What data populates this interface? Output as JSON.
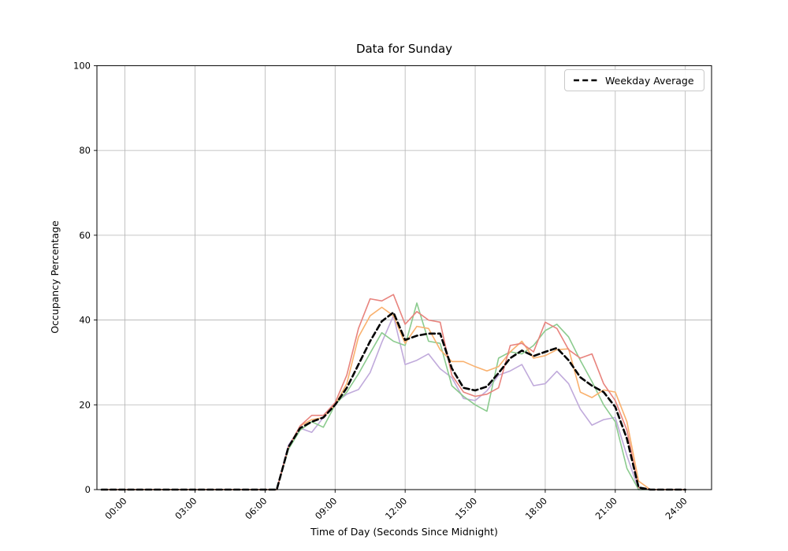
{
  "window": {
    "type": "chart-figure",
    "background": "#ffffff"
  },
  "chart_data": {
    "type": "line",
    "title": "Data for Sunday",
    "xlabel": "Time of Day (Seconds Since Midnight)",
    "ylabel": "Occupancy Percentage",
    "grid": true,
    "grid_color": "#b3b3b3",
    "ylim": [
      0,
      100
    ],
    "y_ticks": [
      0,
      20,
      40,
      60,
      80,
      100
    ],
    "x_tick_hours": [
      0,
      3,
      6,
      9,
      12,
      15,
      18,
      21,
      24
    ],
    "x_tick_labels": [
      "00:00",
      "03:00",
      "06:00",
      "09:00",
      "12:00",
      "15:00",
      "18:00",
      "21:00",
      "24:00"
    ],
    "legend": {
      "position": "upper right",
      "entries": [
        {
          "label": "Weekday Average",
          "color": "#000000",
          "style": "dashed"
        }
      ]
    },
    "x_hours": [
      -1,
      0,
      0.5,
      1,
      1.5,
      2,
      2.5,
      3,
      3.5,
      4,
      4.5,
      5,
      5.5,
      6,
      6.5,
      7,
      7.5,
      8,
      8.5,
      9,
      9.5,
      10,
      10.5,
      11,
      11.5,
      12,
      12.5,
      13,
      13.5,
      14,
      14.5,
      15,
      15.5,
      16,
      16.5,
      17,
      17.5,
      18,
      18.5,
      19,
      19.5,
      20,
      20.5,
      21,
      21.5,
      22,
      22.5,
      23,
      23.5,
      24
    ],
    "series": [
      {
        "name": "series-1",
        "color": "#c0aadb",
        "dashed": false,
        "width": 1.6,
        "values": [
          0,
          0,
          0,
          0,
          0,
          0,
          0,
          0,
          0,
          0,
          0,
          0,
          0,
          0,
          0,
          10.5,
          14.5,
          13.5,
          17,
          20.5,
          22.5,
          23.6,
          27.6,
          34.7,
          41,
          29.5,
          30.5,
          32,
          28.5,
          26.4,
          21.5,
          21,
          23.3,
          27,
          28,
          29.5,
          24.5,
          25,
          27.9,
          25,
          19,
          15.2,
          16.5,
          17,
          8,
          0,
          0,
          0,
          0,
          0
        ]
      },
      {
        "name": "series-2",
        "color": "#8bcb8e",
        "dashed": false,
        "width": 1.6,
        "values": [
          0,
          0,
          0,
          0,
          0,
          0,
          0,
          0,
          0,
          0,
          0,
          0,
          0,
          0,
          0,
          9.5,
          14,
          16,
          14.7,
          20,
          23,
          27.3,
          32.2,
          37,
          35,
          34,
          44,
          35,
          34.5,
          24.5,
          22,
          20,
          18.5,
          31,
          32.5,
          32,
          34,
          37.5,
          39,
          36,
          30.5,
          25.5,
          20,
          16,
          5,
          0,
          0,
          0,
          0,
          0
        ]
      },
      {
        "name": "series-3",
        "color": "#f9b16e",
        "dashed": false,
        "width": 1.6,
        "values": [
          0,
          0,
          0,
          0,
          0,
          0,
          0,
          0,
          0,
          0,
          0,
          0,
          0,
          0,
          0,
          10,
          15,
          16.5,
          17,
          20,
          25,
          36,
          41,
          43,
          41,
          34.5,
          38.5,
          38,
          33,
          30.2,
          30.2,
          29,
          28,
          29,
          32.5,
          35,
          31,
          31.6,
          33,
          33.2,
          23,
          21.7,
          23.5,
          23,
          16,
          2,
          0,
          0,
          0,
          0
        ]
      },
      {
        "name": "series-4",
        "color": "#e8837d",
        "dashed": false,
        "width": 1.6,
        "values": [
          0,
          0,
          0,
          0,
          0,
          0,
          0,
          0,
          0,
          0,
          0,
          0,
          0,
          0,
          0,
          10,
          15,
          17.5,
          17.5,
          20.5,
          27,
          38,
          45,
          44.5,
          46,
          39,
          42,
          40,
          39.5,
          27,
          23,
          22,
          22.5,
          24,
          34,
          34.5,
          32.5,
          39.5,
          38,
          33,
          31,
          32,
          25,
          21,
          14,
          0.5,
          0,
          0,
          0,
          0
        ]
      },
      {
        "name": "weekday-average",
        "color": "#000000",
        "dashed": true,
        "width": 2.6,
        "values": [
          0,
          0,
          0,
          0,
          0,
          0,
          0,
          0,
          0,
          0,
          0,
          0,
          0,
          0,
          0,
          10,
          14.5,
          16,
          17,
          20,
          24,
          29.5,
          35,
          39.7,
          41.8,
          35.3,
          36.3,
          36.8,
          36.8,
          28.6,
          24,
          23.4,
          24.3,
          27.5,
          31,
          32.8,
          31.5,
          32.5,
          33.4,
          30.5,
          26.5,
          24.5,
          23,
          19.5,
          12,
          0.5,
          0,
          0,
          0,
          0
        ]
      }
    ]
  }
}
